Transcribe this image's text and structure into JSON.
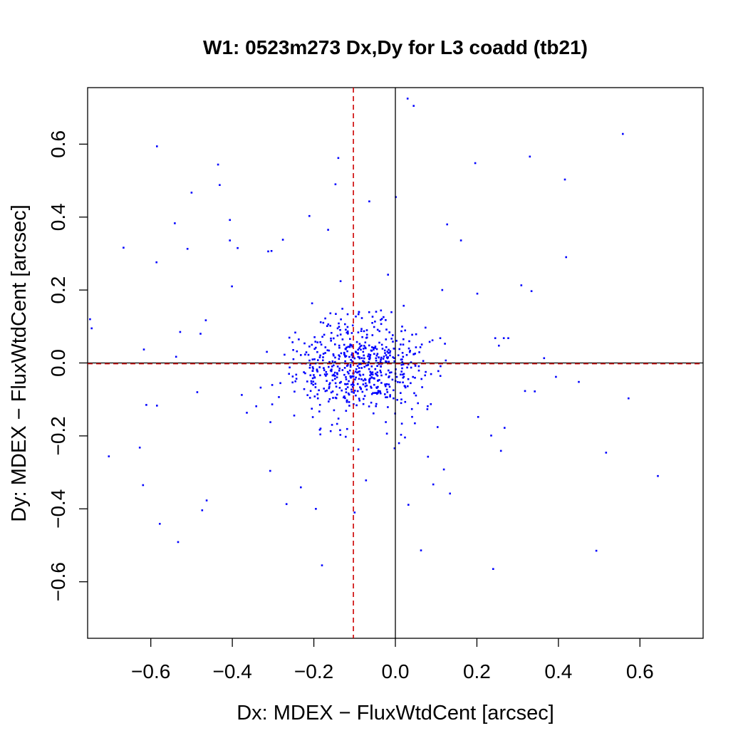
{
  "chart_data": {
    "type": "scatter",
    "title": "W1: 0523m273 Dx,Dy for L3 coadd (tb21)",
    "xlabel": "Dx: MDEX − FluxWtdCent [arcsec]",
    "ylabel": "Dy: MDEX − FluxWtdCent [arcsec]",
    "xlim": [
      -0.755,
      0.755
    ],
    "ylim": [
      -0.755,
      0.755
    ],
    "xticks": [
      -0.6,
      -0.4,
      -0.2,
      0.0,
      0.2,
      0.4,
      0.6
    ],
    "yticks": [
      -0.6,
      -0.4,
      -0.2,
      0.0,
      0.2,
      0.4,
      0.6
    ],
    "xtick_labels": [
      "−0.6",
      "−0.4",
      "−0.2",
      "0.0",
      "0.2",
      "0.4",
      "0.6"
    ],
    "ytick_labels": [
      "−0.6",
      "−0.4",
      "−0.2",
      "0.0",
      "0.2",
      "0.4",
      "0.6"
    ],
    "grid": false,
    "colors": {
      "points": "#0000ff",
      "reference_lines": "#000000",
      "median_lines": "#cc0000"
    },
    "reference_lines": {
      "x": 0.0,
      "y": 0.0,
      "style": "solid"
    },
    "median_lines": {
      "x": -0.103,
      "y": -0.002,
      "style": "dashed"
    },
    "series": [
      {
        "x": [
          0.045,
          0.03,
          0.558,
          -0.585,
          -0.14,
          0.33,
          0.196,
          -0.435,
          -0.431,
          0.416,
          0.001,
          -0.5,
          -0.064,
          -0.211,
          -0.406,
          -0.541,
          -0.147,
          -0.667,
          -0.51,
          -0.406,
          -0.387,
          -0.304,
          -0.276,
          0.161,
          -0.312,
          -0.586,
          0.419,
          -0.165,
          0.127,
          -0.018,
          -0.401,
          0.115,
          0.309,
          0.201,
          0.334,
          -0.749,
          -0.745,
          -0.617,
          -0.538,
          -0.611,
          -0.465,
          -0.478,
          -0.528,
          -0.585,
          -0.486,
          0.245,
          0.266,
          0.277,
          0.365,
          0.394,
          0.45,
          0.572,
          0.342,
          0.318,
          -0.703,
          -0.627,
          -0.619,
          -0.578,
          -0.463,
          -0.533,
          -0.474,
          0.259,
          0.235,
          0.203,
          0.268,
          0.517,
          0.644,
          0.493,
          0.134,
          0.063,
          0.032,
          0.014,
          -0.002,
          0.093,
          0.119,
          0.08,
          0.009,
          0.24,
          -0.18,
          -0.195,
          -0.267,
          -0.307,
          -0.232,
          -0.1,
          -0.072
        ],
        "y": [
          0.705,
          0.725,
          0.628,
          0.594,
          0.562,
          0.566,
          0.548,
          0.544,
          0.488,
          0.503,
          0.455,
          0.467,
          0.443,
          0.403,
          0.392,
          0.383,
          0.49,
          0.316,
          0.313,
          0.336,
          0.315,
          0.307,
          0.338,
          0.336,
          0.306,
          0.276,
          0.29,
          0.365,
          0.38,
          0.242,
          0.21,
          0.2,
          0.213,
          0.19,
          0.197,
          0.12,
          0.095,
          0.037,
          0.017,
          -0.115,
          0.117,
          0.08,
          0.085,
          -0.117,
          -0.08,
          0.068,
          0.068,
          0.068,
          0.013,
          -0.038,
          -0.052,
          -0.097,
          -0.078,
          -0.077,
          -0.256,
          -0.232,
          -0.335,
          -0.441,
          -0.377,
          -0.491,
          -0.404,
          -0.241,
          -0.199,
          -0.148,
          -0.178,
          -0.246,
          -0.31,
          -0.515,
          -0.358,
          -0.514,
          -0.389,
          -0.197,
          -0.234,
          -0.333,
          -0.292,
          -0.257,
          -0.22,
          -0.565,
          -0.555,
          -0.4,
          -0.387,
          -0.296,
          -0.341,
          -0.41,
          -0.322
        ]
      }
    ],
    "cluster_points": 620,
    "cluster_center": [
      -0.09,
      -0.01
    ],
    "cluster_sd": [
      0.085,
      0.07
    ],
    "point_size": 2.6
  }
}
